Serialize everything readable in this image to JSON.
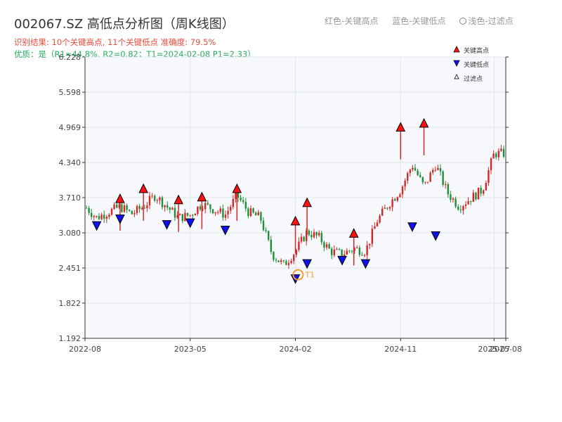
{
  "header": {
    "title": "002067.SZ 高低点分析图（周K线图）",
    "result_line": "识别结果: 10个关键高点, 11个关键低点  准确度: 79.5%",
    "quality_line": "优质：是（R1=44.8%, R2=0.82；T1=2024-02-08 P1=2.33）",
    "legend_red": "红色-关键高点",
    "legend_blue": "蓝色-关键低点",
    "legend_light": "浅色-过滤点"
  },
  "colors": {
    "up": "#d62728",
    "down": "#1f8f3a",
    "high_marker": "#ff1111",
    "low_marker": "#1111ee",
    "t1_marker": "#f0a030",
    "plot_bg": "#f6f8fb",
    "grid": "#e3e6ea"
  },
  "chart_data": {
    "type": "candlestick",
    "yticks": [
      "1.192",
      "1.822",
      "2.451",
      "3.080",
      "3.710",
      "4.340",
      "4.969",
      "5.598",
      "6.228"
    ],
    "ylim": [
      1.192,
      6.228
    ],
    "xlim": [
      "2022-08",
      "2025-08"
    ],
    "xticks": [
      "2022-08",
      "2023-05",
      "2024-02",
      "2024-11",
      "2025-08",
      "2025-07"
    ],
    "t1_label": "T1",
    "t1_point": {
      "date": "2024-02-08",
      "price": 2.33
    },
    "legend": [
      "关键高点",
      "关键低点",
      "过滤点"
    ],
    "close_series": [
      {
        "date": "2022-08",
        "close": 3.55
      },
      {
        "date": "2022-09",
        "close": 3.35
      },
      {
        "date": "2022-10",
        "close": 3.45
      },
      {
        "date": "2022-11",
        "close": 3.55
      },
      {
        "date": "2022-12",
        "close": 3.42
      },
      {
        "date": "2023-01",
        "close": 3.55
      },
      {
        "date": "2023-02",
        "close": 3.75
      },
      {
        "date": "2023-03",
        "close": 3.55
      },
      {
        "date": "2023-04",
        "close": 3.35
      },
      {
        "date": "2023-05",
        "close": 3.4
      },
      {
        "date": "2023-06",
        "close": 3.6
      },
      {
        "date": "2023-07",
        "close": 3.5
      },
      {
        "date": "2023-08",
        "close": 3.4
      },
      {
        "date": "2023-09",
        "close": 3.75
      },
      {
        "date": "2023-10",
        "close": 3.45
      },
      {
        "date": "2023-11",
        "close": 3.35
      },
      {
        "date": "2023-12",
        "close": 2.7
      },
      {
        "date": "2024-01",
        "close": 2.5
      },
      {
        "date": "2024-02",
        "close": 2.75
      },
      {
        "date": "2024-03",
        "close": 3.1
      },
      {
        "date": "2024-04",
        "close": 3.0
      },
      {
        "date": "2024-05",
        "close": 2.75
      },
      {
        "date": "2024-06",
        "close": 2.7
      },
      {
        "date": "2024-07",
        "close": 2.8
      },
      {
        "date": "2024-08",
        "close": 2.75
      },
      {
        "date": "2024-09",
        "close": 3.3
      },
      {
        "date": "2024-10",
        "close": 3.6
      },
      {
        "date": "2024-11",
        "close": 3.85
      },
      {
        "date": "2024-12",
        "close": 4.3
      },
      {
        "date": "2025-01",
        "close": 3.9
      },
      {
        "date": "2025-02",
        "close": 4.3
      },
      {
        "date": "2025-03",
        "close": 3.8
      },
      {
        "date": "2025-04",
        "close": 3.55
      },
      {
        "date": "2025-05",
        "close": 3.7
      },
      {
        "date": "2025-06",
        "close": 3.85
      },
      {
        "date": "2025-07",
        "close": 4.5
      }
    ],
    "key_highs": [
      {
        "date": "2022-11",
        "price": 3.62
      },
      {
        "date": "2023-01",
        "price": 3.8
      },
      {
        "date": "2023-04",
        "price": 3.6
      },
      {
        "date": "2023-06",
        "price": 3.65
      },
      {
        "date": "2023-09",
        "price": 3.8
      },
      {
        "date": "2024-02",
        "price": 3.22
      },
      {
        "date": "2024-03",
        "price": 3.55
      },
      {
        "date": "2024-07",
        "price": 3.0
      },
      {
        "date": "2024-11",
        "price": 4.9
      },
      {
        "date": "2025-01",
        "price": 4.97
      }
    ],
    "key_lows": [
      {
        "date": "2022-09",
        "price": 3.28
      },
      {
        "date": "2022-11",
        "price": 3.4
      },
      {
        "date": "2023-03",
        "price": 3.3
      },
      {
        "date": "2023-05",
        "price": 3.33
      },
      {
        "date": "2023-08",
        "price": 3.2
      },
      {
        "date": "2024-02",
        "price": 2.33
      },
      {
        "date": "2024-03",
        "price": 2.6
      },
      {
        "date": "2024-06",
        "price": 2.66
      },
      {
        "date": "2024-08",
        "price": 2.6
      },
      {
        "date": "2024-12",
        "price": 3.26
      },
      {
        "date": "2025-02",
        "price": 3.1
      }
    ]
  }
}
